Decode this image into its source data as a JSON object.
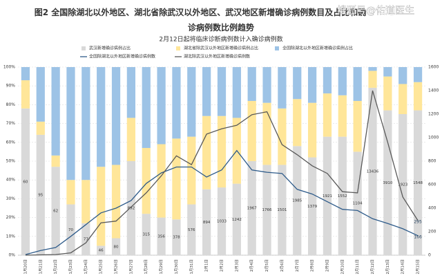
{
  "chart_data": {
    "type": "bar",
    "title": "图2 全国除湖北以外地区、湖北省除武汉以外地区、武汉地区新增确诊病例数目及占比和确诊病例数比例趋势",
    "subtitle": "2月12日起将临床诊断病例数计入确诊病例数",
    "watermark": "搜狐号@佑道医生",
    "stacked": true,
    "grid": true,
    "categories": [
      "1月20日",
      "1月21日",
      "1月22日",
      "1月23日",
      "1月24日",
      "1月25日",
      "1月26日",
      "1月27日",
      "1月28日",
      "1月29日",
      "1月30日",
      "1月31日",
      "2月1日",
      "2月2日",
      "2月3日",
      "2月4日",
      "2月5日",
      "2月6日",
      "2月7日",
      "2月8日",
      "2月9日",
      "2月10日",
      "2月11日",
      "2月12日",
      "2月13日",
      "2月14日",
      "2月15日"
    ],
    "series": [
      {
        "name": "武汉新增确诊病例占比",
        "type": "bar",
        "color": "#d9d9d9",
        "values": [
          78,
          64,
          47,
          27,
          17,
          5,
          9,
          50,
          22,
          20,
          19,
          27,
          35,
          36,
          38,
          50,
          48,
          48,
          58,
          52,
          63,
          63,
          55,
          89,
          77,
          75,
          77
        ],
        "labels": [
          60,
          95,
          62,
          70,
          77,
          46,
          80,
          892,
          315,
          356,
          378,
          576,
          894,
          1033,
          1242,
          1967,
          1766,
          1501,
          1985,
          1379,
          1921,
          1552,
          1104,
          13436,
          3910,
          1923,
          1548
        ]
      },
      {
        "name": "湖北省除武汉以外地区新增确诊病例占比",
        "type": "bar",
        "color": "#ffe699",
        "values": [
          15,
          7,
          6,
          13,
          23,
          42,
          39,
          23,
          35,
          39,
          43,
          36,
          39,
          38,
          35,
          32,
          33,
          30,
          25,
          29,
          23,
          22,
          27,
          9,
          18,
          16,
          15
        ]
      },
      {
        "name": "全国除湖北以外地区新增确诊病例占比",
        "type": "bar",
        "color": "#9dc3e6",
        "values": [
          7,
          29,
          47,
          60,
          60,
          53,
          52,
          27,
          43,
          41,
          38,
          37,
          26,
          26,
          27,
          18,
          19,
          22,
          17,
          19,
          14,
          15,
          18,
          2,
          5,
          9,
          8
        ]
      },
      {
        "name": "全国除湖北以外地区新增确诊病例数",
        "type": "line",
        "axis": "y2",
        "color": "#2e5b8a",
        "values": [
          5,
          40,
          65,
          160,
          260,
          360,
          400,
          465,
          610,
          700,
          750,
          750,
          665,
          725,
          890,
          725,
          705,
          695,
          560,
          520,
          455,
          390,
          380,
          310,
          270,
          225,
          166
        ]
      },
      {
        "name": "湖北除武汉以外地区新增确诊病例数",
        "type": "line",
        "axis": "y2",
        "color": "#595959",
        "values": [
          0,
          3,
          5,
          20,
          105,
          275,
          290,
          410,
          530,
          675,
          845,
          770,
          1030,
          1075,
          1105,
          1195,
          1220,
          940,
          855,
          760,
          695,
          540,
          530,
          1400,
          960,
          495,
          295
        ]
      }
    ],
    "ylim": [
      0,
      100
    ],
    "yticks": [
      {
        "value": 0,
        "label": "0%"
      },
      {
        "value": 10,
        "label": "10%"
      },
      {
        "value": 20,
        "label": "20%"
      },
      {
        "value": 30,
        "label": "30%"
      },
      {
        "value": 40,
        "label": "40%"
      },
      {
        "value": 50,
        "label": "50%"
      },
      {
        "value": 60,
        "label": "60%"
      },
      {
        "value": 70,
        "label": "70%"
      },
      {
        "value": 80,
        "label": "80%"
      },
      {
        "value": 90,
        "label": "90%"
      },
      {
        "value": 100,
        "label": "100%"
      }
    ],
    "y2lim": [
      0,
      1600
    ],
    "y2ticks": [
      0,
      200,
      400,
      600,
      800,
      1000,
      1200,
      1400,
      1600
    ]
  }
}
